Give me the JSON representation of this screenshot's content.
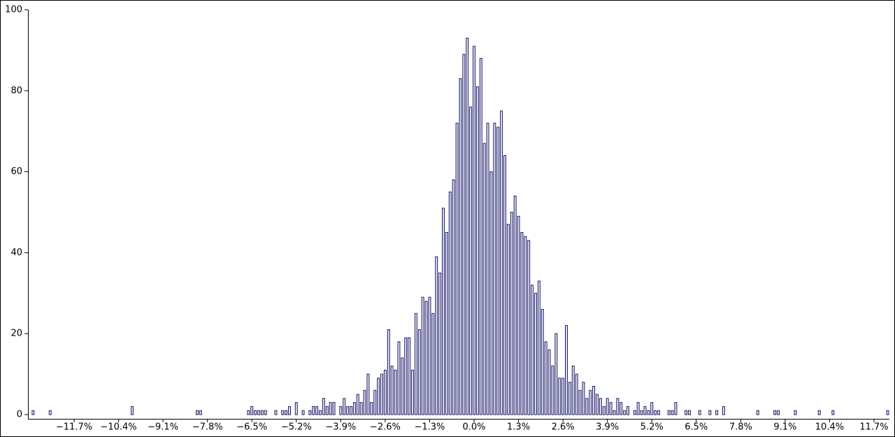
{
  "chart_data": {
    "type": "bar",
    "color": "#1a1a66",
    "fill": "#e4e4f4",
    "x": [
      -12.9,
      -12.4,
      -10.0,
      -8.1,
      -8.0,
      -6.6,
      -6.5,
      -6.4,
      -6.3,
      -6.2,
      -6.1,
      -5.8,
      -5.6,
      -5.5,
      -5.4,
      -5.2,
      -5.0,
      -4.8,
      -4.7,
      -4.6,
      -4.5,
      -4.4,
      -4.3,
      -4.2,
      -4.1,
      -3.9,
      -3.8,
      -3.7,
      -3.6,
      -3.5,
      -3.4,
      -3.3,
      -3.2,
      -3.1,
      -3.0,
      -2.9,
      -2.8,
      -2.7,
      -2.6,
      -2.5,
      -2.4,
      -2.3,
      -2.2,
      -2.1,
      -2.0,
      -1.9,
      -1.8,
      -1.7,
      -1.6,
      -1.5,
      -1.4,
      -1.3,
      -1.2,
      -1.1,
      -1.0,
      -0.9,
      -0.8,
      -0.7,
      -0.6,
      -0.5,
      -0.4,
      -0.3,
      -0.2,
      -0.1,
      0.0,
      0.1,
      0.2,
      0.3,
      0.4,
      0.5,
      0.6,
      0.7,
      0.8,
      0.9,
      1.0,
      1.1,
      1.2,
      1.3,
      1.4,
      1.5,
      1.6,
      1.7,
      1.8,
      1.9,
      2.0,
      2.1,
      2.2,
      2.3,
      2.4,
      2.5,
      2.6,
      2.7,
      2.8,
      2.9,
      3.0,
      3.1,
      3.2,
      3.3,
      3.4,
      3.5,
      3.6,
      3.7,
      3.8,
      3.9,
      4.0,
      4.1,
      4.2,
      4.3,
      4.4,
      4.5,
      4.7,
      4.8,
      4.9,
      5.0,
      5.1,
      5.2,
      5.3,
      5.4,
      5.7,
      5.8,
      5.9,
      6.2,
      6.3,
      6.6,
      6.9,
      7.1,
      7.3,
      8.3,
      8.8,
      8.9,
      9.4,
      10.1,
      10.5,
      12.1
    ],
    "values": [
      1,
      1,
      2,
      1,
      1,
      1,
      2,
      1,
      1,
      1,
      1,
      1,
      1,
      1,
      2,
      3,
      1,
      1,
      2,
      2,
      1,
      4,
      2,
      3,
      3,
      2,
      4,
      2,
      2,
      3,
      5,
      3,
      6,
      10,
      3,
      6,
      9,
      10,
      11,
      21,
      12,
      11,
      18,
      14,
      19,
      19,
      11,
      25,
      21,
      29,
      28,
      29,
      25,
      39,
      35,
      51,
      45,
      55,
      58,
      72,
      83,
      89,
      93,
      76,
      91,
      81,
      88,
      67,
      72,
      60,
      72,
      71,
      75,
      64,
      47,
      50,
      54,
      49,
      45,
      44,
      43,
      32,
      30,
      33,
      26,
      18,
      16,
      12,
      20,
      9,
      9,
      22,
      8,
      12,
      10,
      6,
      8,
      4,
      6,
      7,
      5,
      4,
      2,
      4,
      3,
      1,
      4,
      3,
      1,
      2,
      1,
      3,
      1,
      2,
      1,
      3,
      1,
      1,
      1,
      1,
      3,
      1,
      1,
      1,
      1,
      1,
      2,
      1,
      1,
      1,
      1,
      1,
      1,
      1
    ],
    "xlim": [
      -13.05,
      12.15
    ],
    "xticks": [
      {
        "value": -11.7,
        "label": "−11.7%"
      },
      {
        "value": -10.4,
        "label": "−10.4%"
      },
      {
        "value": -9.1,
        "label": "−9.1%"
      },
      {
        "value": -7.8,
        "label": "−7.8%"
      },
      {
        "value": -6.5,
        "label": "−6.5%"
      },
      {
        "value": -5.2,
        "label": "−5.2%"
      },
      {
        "value": -3.9,
        "label": "−3.9%"
      },
      {
        "value": -2.6,
        "label": "−2.6%"
      },
      {
        "value": -1.3,
        "label": "−1.3%"
      },
      {
        "value": 0,
        "label": "0.0%"
      },
      {
        "value": 1.3,
        "label": "1.3%"
      },
      {
        "value": 2.6,
        "label": "2.6%"
      },
      {
        "value": 3.9,
        "label": "3.9%"
      },
      {
        "value": 5.2,
        "label": "5.2%"
      },
      {
        "value": 6.5,
        "label": "6.5%"
      },
      {
        "value": 7.8,
        "label": "7.8%"
      },
      {
        "value": 9.1,
        "label": "9.1%"
      },
      {
        "value": 10.4,
        "label": "10.4%"
      },
      {
        "value": 11.7,
        "label": "11.7%"
      }
    ],
    "ylim": [
      0,
      100
    ],
    "yticks": [
      0,
      20,
      40,
      60,
      80,
      100
    ]
  }
}
